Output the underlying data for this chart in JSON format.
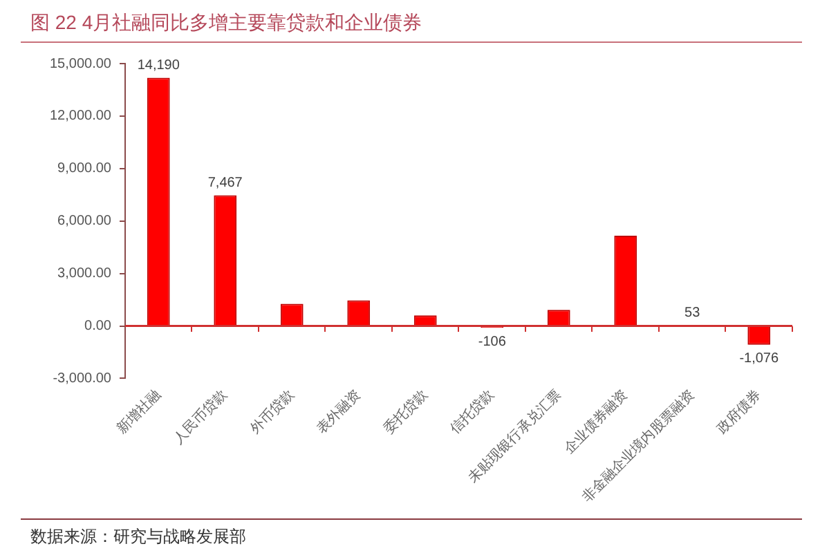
{
  "chart_data": {
    "type": "bar",
    "title": "图 22 4月社融同比多增主要靠贷款和企业债券",
    "categories": [
      "新增社融",
      "人民币贷款",
      "外币贷款",
      "表外融资",
      "委托贷款",
      "信托贷款",
      "未贴现银行承兑汇票",
      "企业债券融资",
      "非金融企业境内股票融资",
      "政府债券"
    ],
    "values": [
      14190,
      7467,
      1270,
      1460,
      600,
      -106,
      920,
      5160,
      53,
      -1076
    ],
    "color": "#ff0000",
    "value_labels": [
      "14,190",
      "7,467",
      null,
      null,
      null,
      "-106",
      null,
      null,
      "53",
      "-1,076"
    ],
    "ylim": [
      -3000,
      15000
    ],
    "yticks": [
      {
        "value": -3000,
        "label": "-3,000.00"
      },
      {
        "value": 0,
        "label": "0.00"
      },
      {
        "value": 3000,
        "label": "3,000.00"
      },
      {
        "value": 6000,
        "label": "6,000.00"
      },
      {
        "value": 9000,
        "label": "9,000.00"
      },
      {
        "value": 12000,
        "label": "12,000.00"
      },
      {
        "value": 15000,
        "label": "15,000.00"
      }
    ],
    "ref_lines": [
      {
        "axis": "y",
        "value": 0,
        "color": "#d03030"
      }
    ],
    "annotations": [
      "数据来源：研究与战略发展部"
    ]
  }
}
